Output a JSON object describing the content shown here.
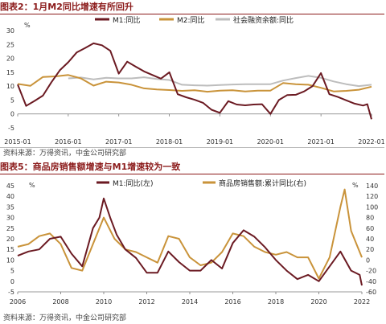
{
  "exhibit_top": {
    "title": "图表2：1月M2同比增速有所回升",
    "source": "资料来源：万得资讯，中金公司研究部"
  },
  "exhibit_bottom": {
    "title": "图表5：商品房销售额增速与M1增速较为一致",
    "source": "资料来源：万得资讯，中金公司研究部"
  },
  "chart_data": [
    {
      "type": "line",
      "yunit": "%",
      "ylim": [
        -5,
        30
      ],
      "yticks": [
        -5,
        0,
        5,
        10,
        15,
        20,
        25,
        30
      ],
      "xlim": [
        "2015-01",
        "2022-01"
      ],
      "xticks": [
        "2015-01",
        "2016-01",
        "2017-01",
        "2018-01",
        "2019-01",
        "2020-01",
        "2021-01",
        "2022-01"
      ],
      "grid": false,
      "legend": "top",
      "series": [
        {
          "name": "M1:同比",
          "color": "#6b1a22",
          "points": [
            [
              "2015-01",
              10.6
            ],
            [
              "2015-03",
              2.9
            ],
            [
              "2015-05",
              4.7
            ],
            [
              "2015-07",
              6.6
            ],
            [
              "2015-09",
              11.4
            ],
            [
              "2015-11",
              15.7
            ],
            [
              "2016-01",
              18.6
            ],
            [
              "2016-03",
              22.1
            ],
            [
              "2016-05",
              23.7
            ],
            [
              "2016-07",
              25.4
            ],
            [
              "2016-09",
              24.7
            ],
            [
              "2016-11",
              22.7
            ],
            [
              "2017-01",
              14.5
            ],
            [
              "2017-03",
              18.8
            ],
            [
              "2017-05",
              17.0
            ],
            [
              "2017-07",
              15.3
            ],
            [
              "2017-09",
              14.0
            ],
            [
              "2017-11",
              12.7
            ],
            [
              "2018-01",
              15.0
            ],
            [
              "2018-03",
              7.1
            ],
            [
              "2018-05",
              6.0
            ],
            [
              "2018-07",
              5.1
            ],
            [
              "2018-09",
              4.0
            ],
            [
              "2018-11",
              1.5
            ],
            [
              "2019-01",
              0.4
            ],
            [
              "2019-03",
              4.6
            ],
            [
              "2019-05",
              3.4
            ],
            [
              "2019-07",
              3.1
            ],
            [
              "2019-09",
              3.4
            ],
            [
              "2019-11",
              3.5
            ],
            [
              "2020-01",
              0.0
            ],
            [
              "2020-03",
              5.0
            ],
            [
              "2020-05",
              6.8
            ],
            [
              "2020-07",
              6.9
            ],
            [
              "2020-09",
              8.1
            ],
            [
              "2020-11",
              10.0
            ],
            [
              "2021-01",
              14.7
            ],
            [
              "2021-03",
              7.1
            ],
            [
              "2021-05",
              6.1
            ],
            [
              "2021-07",
              4.9
            ],
            [
              "2021-09",
              3.7
            ],
            [
              "2021-11",
              3.0
            ],
            [
              "2021-12",
              3.5
            ],
            [
              "2022-01",
              -1.9
            ]
          ]
        },
        {
          "name": "M2:同比",
          "color": "#c9933a",
          "points": [
            [
              "2015-01",
              10.8
            ],
            [
              "2015-04",
              10.1
            ],
            [
              "2015-07",
              13.3
            ],
            [
              "2015-10",
              13.5
            ],
            [
              "2016-01",
              14.0
            ],
            [
              "2016-04",
              12.8
            ],
            [
              "2016-07",
              10.2
            ],
            [
              "2016-10",
              11.6
            ],
            [
              "2017-01",
              11.3
            ],
            [
              "2017-04",
              10.5
            ],
            [
              "2017-07",
              9.2
            ],
            [
              "2017-10",
              8.8
            ],
            [
              "2018-01",
              8.6
            ],
            [
              "2018-04",
              8.3
            ],
            [
              "2018-07",
              8.5
            ],
            [
              "2018-10",
              8.0
            ],
            [
              "2019-01",
              8.4
            ],
            [
              "2019-04",
              8.5
            ],
            [
              "2019-07",
              8.1
            ],
            [
              "2019-10",
              8.4
            ],
            [
              "2020-01",
              8.4
            ],
            [
              "2020-04",
              11.1
            ],
            [
              "2020-07",
              10.7
            ],
            [
              "2020-10",
              10.5
            ],
            [
              "2021-01",
              9.4
            ],
            [
              "2021-04",
              8.1
            ],
            [
              "2021-07",
              8.3
            ],
            [
              "2021-10",
              8.7
            ],
            [
              "2022-01",
              9.8
            ]
          ]
        },
        {
          "name": "社会融资余额:同比",
          "color": "#bdbdbd",
          "points": [
            [
              "2016-01",
              12.8
            ],
            [
              "2016-04",
              13.1
            ],
            [
              "2016-07",
              12.4
            ],
            [
              "2016-10",
              13.0
            ],
            [
              "2017-01",
              12.8
            ],
            [
              "2017-04",
              12.8
            ],
            [
              "2017-07",
              13.2
            ],
            [
              "2017-10",
              12.6
            ],
            [
              "2018-01",
              12.2
            ],
            [
              "2018-04",
              10.5
            ],
            [
              "2018-07",
              10.3
            ],
            [
              "2018-10",
              10.2
            ],
            [
              "2019-01",
              10.4
            ],
            [
              "2019-04",
              10.6
            ],
            [
              "2019-07",
              10.7
            ],
            [
              "2019-10",
              10.7
            ],
            [
              "2020-01",
              10.7
            ],
            [
              "2020-04",
              12.0
            ],
            [
              "2020-07",
              12.9
            ],
            [
              "2020-10",
              13.7
            ],
            [
              "2021-01",
              13.0
            ],
            [
              "2021-04",
              11.7
            ],
            [
              "2021-07",
              10.7
            ],
            [
              "2021-10",
              10.0
            ],
            [
              "2022-01",
              10.5
            ]
          ]
        }
      ]
    },
    {
      "type": "line",
      "yunit_left": "%",
      "yunit_right": "%",
      "ylim_left": [
        -5,
        45
      ],
      "yticks_left": [
        -5,
        0,
        5,
        10,
        15,
        20,
        25,
        30,
        35,
        40,
        45
      ],
      "ylim_right": [
        -60,
        140
      ],
      "yticks_right": [
        -60,
        -40,
        -20,
        0,
        20,
        40,
        60,
        80,
        100,
        120,
        140
      ],
      "xlim": [
        2006,
        2022
      ],
      "xticks": [
        "2006",
        "2008",
        "2010",
        "2012",
        "2014",
        "2016",
        "2018",
        "2020",
        "2022"
      ],
      "grid": false,
      "legend": "top",
      "series": [
        {
          "name": "M1:同比(左)",
          "axis": "left",
          "color": "#6b1a22",
          "points": [
            [
              2006.0,
              12
            ],
            [
              2006.5,
              14
            ],
            [
              2007.0,
              15
            ],
            [
              2007.5,
              20
            ],
            [
              2008.0,
              21
            ],
            [
              2008.5,
              13
            ],
            [
              2009.0,
              7
            ],
            [
              2009.5,
              25
            ],
            [
              2009.8,
              30
            ],
            [
              2010.0,
              39
            ],
            [
              2010.3,
              30
            ],
            [
              2010.6,
              22
            ],
            [
              2011.0,
              15
            ],
            [
              2011.5,
              11
            ],
            [
              2012.0,
              4
            ],
            [
              2012.5,
              4
            ],
            [
              2013.0,
              14
            ],
            [
              2013.5,
              9
            ],
            [
              2014.0,
              5
            ],
            [
              2014.5,
              5
            ],
            [
              2015.0,
              10
            ],
            [
              2015.5,
              6
            ],
            [
              2016.0,
              18
            ],
            [
              2016.5,
              24
            ],
            [
              2017.0,
              21
            ],
            [
              2017.5,
              16
            ],
            [
              2018.0,
              10
            ],
            [
              2018.5,
              5
            ],
            [
              2019.0,
              1
            ],
            [
              2019.5,
              3
            ],
            [
              2020.0,
              0
            ],
            [
              2020.5,
              7
            ],
            [
              2021.0,
              14
            ],
            [
              2021.5,
              5
            ],
            [
              2021.9,
              3
            ],
            [
              2022.0,
              -2
            ]
          ]
        },
        {
          "name": "商品房销售额:累计同比(右)",
          "axis": "right",
          "color": "#c9933a",
          "points": [
            [
              2006.0,
              25
            ],
            [
              2006.5,
              30
            ],
            [
              2007.0,
              45
            ],
            [
              2007.5,
              50
            ],
            [
              2008.0,
              30
            ],
            [
              2008.5,
              -15
            ],
            [
              2009.0,
              -20
            ],
            [
              2009.5,
              30
            ],
            [
              2010.0,
              80
            ],
            [
              2010.5,
              40
            ],
            [
              2011.0,
              20
            ],
            [
              2011.5,
              15
            ],
            [
              2012.0,
              5
            ],
            [
              2012.5,
              -5
            ],
            [
              2013.0,
              45
            ],
            [
              2013.5,
              40
            ],
            [
              2014.0,
              5
            ],
            [
              2014.5,
              -10
            ],
            [
              2015.0,
              -5
            ],
            [
              2015.5,
              15
            ],
            [
              2016.0,
              50
            ],
            [
              2016.5,
              45
            ],
            [
              2017.0,
              25
            ],
            [
              2017.5,
              15
            ],
            [
              2018.0,
              10
            ],
            [
              2018.5,
              15
            ],
            [
              2019.0,
              5
            ],
            [
              2019.5,
              5
            ],
            [
              2020.0,
              -35
            ],
            [
              2020.5,
              5
            ],
            [
              2021.0,
              100
            ],
            [
              2021.2,
              133
            ],
            [
              2021.5,
              55
            ],
            [
              2022.0,
              5
            ]
          ]
        }
      ]
    }
  ]
}
